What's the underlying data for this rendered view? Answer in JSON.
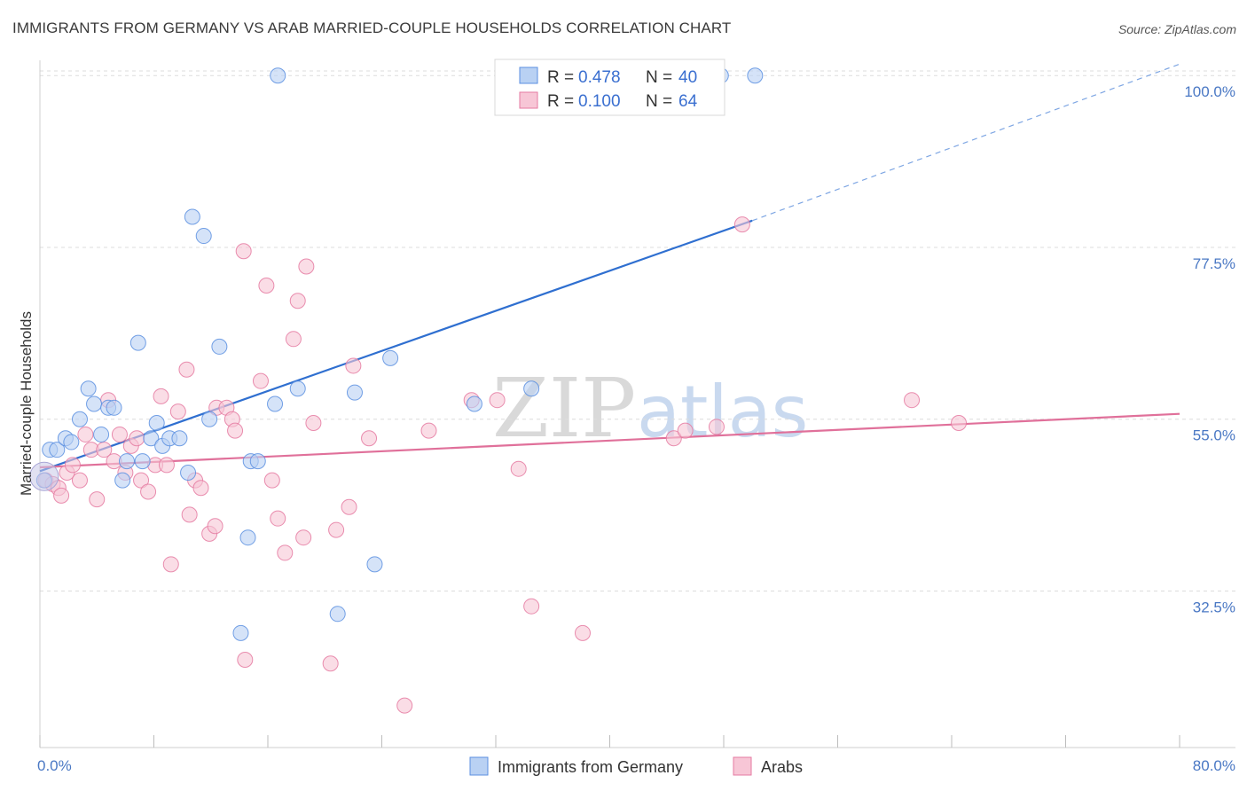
{
  "title": "IMMIGRANTS FROM GERMANY VS ARAB MARRIED-COUPLE HOUSEHOLDS CORRELATION CHART",
  "source": "Source: ZipAtlas.com",
  "watermark": {
    "zip": "ZIP",
    "atlas": "atlas"
  },
  "legend": {
    "r_label": "R = ",
    "n_label": "N = ",
    "items": [
      {
        "r": "0.478",
        "n": "40"
      },
      {
        "r": "0.100",
        "n": "64"
      }
    ]
  },
  "chart_data": {
    "type": "scatter",
    "title": "IMMIGRANTS FROM GERMANY VS ARAB MARRIED-COUPLE HOUSEHOLDS CORRELATION CHART",
    "xlabel": "",
    "ylabel": "Married-couple Households",
    "xlim": [
      0,
      80
    ],
    "ylim": [
      12,
      102
    ],
    "x_tick_labels": [
      "0.0%",
      "80.0%"
    ],
    "y_ticks": [
      32.5,
      55.0,
      77.5,
      100.0
    ],
    "y_tick_labels": [
      "32.5%",
      "55.0%",
      "77.5%",
      "100.0%"
    ],
    "grid": true,
    "colors": {
      "series1": "#5b8fe0",
      "series1_fill": "#b9d1f3",
      "series2": "#e57aa1",
      "series2_fill": "#f7c6d6",
      "axis_text": "#4a78c4"
    },
    "series": [
      {
        "name": "Immigrants from Germany",
        "r": 0.478,
        "n": 40,
        "trend": {
          "x0": 0,
          "y0": 48.2,
          "x1": 50,
          "y1": 81.0,
          "dash_to_x": 80,
          "dash_to_y": 101.5
        },
        "points": [
          [
            0.3,
            47
          ],
          [
            0.7,
            51
          ],
          [
            1.2,
            51
          ],
          [
            1.8,
            52.5
          ],
          [
            2.2,
            52
          ],
          [
            2.8,
            55
          ],
          [
            3.4,
            59
          ],
          [
            3.8,
            57
          ],
          [
            4.3,
            53
          ],
          [
            4.8,
            56.5
          ],
          [
            5.2,
            56.5
          ],
          [
            5.8,
            47
          ],
          [
            6.1,
            49.5
          ],
          [
            6.9,
            65
          ],
          [
            7.2,
            49.5
          ],
          [
            7.8,
            52.5
          ],
          [
            8.2,
            54.5
          ],
          [
            8.6,
            51.5
          ],
          [
            9.1,
            52.5
          ],
          [
            9.8,
            52.5
          ],
          [
            10.4,
            48
          ],
          [
            10.7,
            81.5
          ],
          [
            11.5,
            79
          ],
          [
            11.9,
            55
          ],
          [
            12.6,
            64.5
          ],
          [
            14.1,
            27
          ],
          [
            14.6,
            39.5
          ],
          [
            14.8,
            49.5
          ],
          [
            15.3,
            49.5
          ],
          [
            16.7,
            100
          ],
          [
            16.5,
            57
          ],
          [
            18.1,
            59
          ],
          [
            20.9,
            29.5
          ],
          [
            22.1,
            58.5
          ],
          [
            23.5,
            36
          ],
          [
            24.6,
            63
          ],
          [
            30.5,
            57
          ],
          [
            34.5,
            59
          ],
          [
            47.8,
            100
          ],
          [
            50.2,
            100
          ]
        ]
      },
      {
        "name": "Arabs",
        "r": 0.1,
        "n": 64,
        "trend": {
          "x0": 0,
          "y0": 48.7,
          "x1": 80,
          "y1": 55.7
        },
        "points": [
          [
            0.4,
            47
          ],
          [
            0.9,
            46.5
          ],
          [
            1.3,
            46
          ],
          [
            1.5,
            45
          ],
          [
            1.9,
            48
          ],
          [
            2.3,
            49
          ],
          [
            2.8,
            47
          ],
          [
            3.2,
            53
          ],
          [
            3.6,
            51
          ],
          [
            4.0,
            44.5
          ],
          [
            4.5,
            51
          ],
          [
            4.8,
            57.5
          ],
          [
            5.2,
            49.5
          ],
          [
            5.6,
            53
          ],
          [
            6.0,
            48
          ],
          [
            6.4,
            51.5
          ],
          [
            6.8,
            52.5
          ],
          [
            7.1,
            47
          ],
          [
            7.6,
            45.5
          ],
          [
            8.1,
            49
          ],
          [
            8.5,
            58
          ],
          [
            8.9,
            49
          ],
          [
            9.2,
            36
          ],
          [
            9.7,
            56
          ],
          [
            10.3,
            61.5
          ],
          [
            10.5,
            42.5
          ],
          [
            10.9,
            47
          ],
          [
            11.3,
            46
          ],
          [
            11.9,
            40
          ],
          [
            12.3,
            41
          ],
          [
            12.4,
            56.5
          ],
          [
            13.1,
            56.5
          ],
          [
            13.5,
            55
          ],
          [
            13.7,
            53.5
          ],
          [
            14.3,
            77
          ],
          [
            14.4,
            23.5
          ],
          [
            15.5,
            60
          ],
          [
            15.9,
            72.5
          ],
          [
            16.3,
            47
          ],
          [
            16.7,
            42
          ],
          [
            17.2,
            37.5
          ],
          [
            17.8,
            65.5
          ],
          [
            18.1,
            70.5
          ],
          [
            18.5,
            39.5
          ],
          [
            18.7,
            75
          ],
          [
            19.2,
            54.5
          ],
          [
            20.4,
            23
          ],
          [
            20.8,
            40.5
          ],
          [
            21.7,
            43.5
          ],
          [
            22.0,
            62
          ],
          [
            23.1,
            52.5
          ],
          [
            25.6,
            17.5
          ],
          [
            27.3,
            53.5
          ],
          [
            30.3,
            57.5
          ],
          [
            32.1,
            57.5
          ],
          [
            33.6,
            48.5
          ],
          [
            34.5,
            30.5
          ],
          [
            38.1,
            27
          ],
          [
            44.5,
            52.5
          ],
          [
            45.3,
            53.5
          ],
          [
            47.5,
            54
          ],
          [
            49.3,
            80.5
          ],
          [
            61.2,
            57.5
          ],
          [
            64.5,
            54.5
          ]
        ]
      }
    ]
  },
  "bottom_legend": [
    "Immigrants from Germany",
    "Arabs"
  ]
}
